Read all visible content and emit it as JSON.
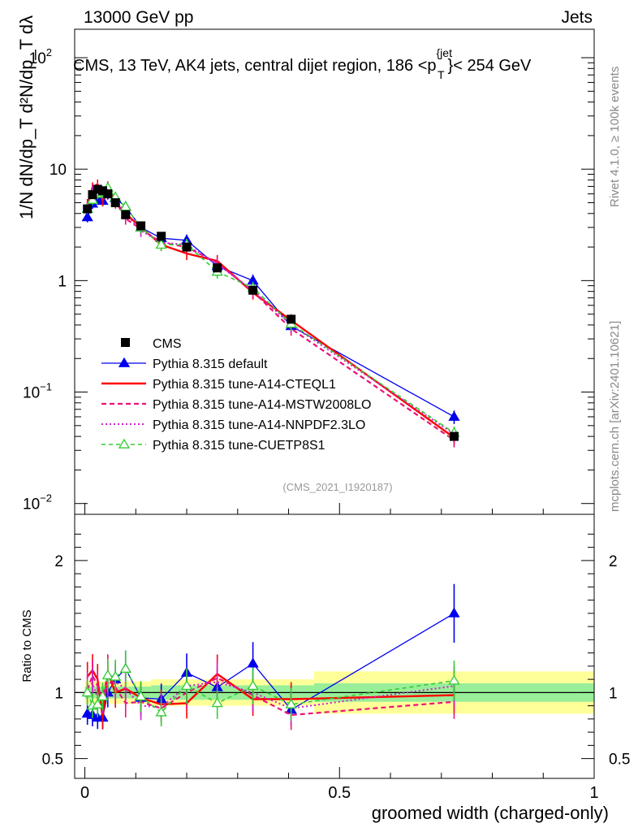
{
  "header": {
    "left": "13000 GeV pp",
    "right": "Jets",
    "title": "CMS, 13 TeV, AK4 jets, central dijet region, 186 <p",
    "title_sup": "{jet",
    "title_sub": "T",
    "title_end": "}< 254 GeV"
  },
  "side": {
    "rivet": "Rivet 4.1.0, ≥ 100k events",
    "mcplots": "mcplots.cern.ch [arXiv:2401.10621]"
  },
  "analysis_id": "(CMS_2021_I1920187)",
  "ylabel_top": "1/N dN/dp_T d²N/dp_T dλ",
  "ratio_ylabel": "Ratio to CMS",
  "xlabel": "groomed width (charged-only)",
  "colors": {
    "cms": "#000000",
    "default": "#0000ee",
    "a14_cteq": "#ff0000",
    "a14_mstw": "#ee1177",
    "a14_nnpdf": "#cc22cc",
    "cuetp8s1": "#33cc33",
    "band_inner": "#99ee99",
    "band_outer": "#ffff99"
  },
  "chart_data": {
    "type": "line",
    "title": "CMS, 13 TeV, AK4 jets, central dijet region, 186 < pT jet < 254 GeV",
    "xlabel": "groomed width (charged-only)",
    "ylabel": "1/N dN/dpT d2N/dpT dlambda",
    "xlim": [
      -0.02,
      1.0
    ],
    "ylim": [
      0.008,
      180
    ],
    "yscale": "log",
    "x_ticks": [
      "0",
      "0.5",
      "1"
    ],
    "y_ticks": [
      "10^-2",
      "10^-1",
      "1",
      "10",
      "10^2"
    ],
    "legend": [
      "CMS",
      "Pythia 8.315 default",
      "Pythia 8.315 tune-A14-CTEQL1",
      "Pythia 8.315 tune-A14-MSTW2008LO",
      "Pythia 8.315 tune-A14-NNPDF2.3LO",
      "Pythia 8.315 tune-CUETP8S1"
    ],
    "x": [
      0.005,
      0.015,
      0.025,
      0.035,
      0.045,
      0.06,
      0.08,
      0.11,
      0.15,
      0.2,
      0.26,
      0.33,
      0.405,
      0.725
    ],
    "data": {
      "name": "CMS",
      "values": [
        4.4,
        5.9,
        6.6,
        6.4,
        6.0,
        5.0,
        3.9,
        3.1,
        2.5,
        2.0,
        1.3,
        0.82,
        0.45,
        0.04
      ]
    },
    "series": [
      {
        "name": "Pythia 8.315 default",
        "values": [
          3.7,
          4.9,
          5.4,
          5.2,
          6.0,
          5.5,
          4.6,
          3.0,
          2.4,
          2.3,
          1.35,
          1.0,
          0.39,
          0.06
        ]
      },
      {
        "name": "Pythia 8.315 tune-A14-CTEQL1",
        "values": [
          4.9,
          6.9,
          7.3,
          5.2,
          6.9,
          5.0,
          4.0,
          3.0,
          2.1,
          1.75,
          1.5,
          0.78,
          0.44,
          0.039
        ]
      },
      {
        "name": "Pythia 8.315 tune-A14-MSTW2008LO",
        "values": [
          4.5,
          6.7,
          6.9,
          6.0,
          7.0,
          5.2,
          3.6,
          2.9,
          2.2,
          2.0,
          1.44,
          0.8,
          0.37,
          0.037
        ]
      },
      {
        "name": "Pythia 8.315 tune-A14-NNPDF2.3LO",
        "values": [
          4.6,
          6.3,
          6.3,
          6.1,
          6.4,
          5.4,
          4.0,
          2.8,
          2.2,
          2.1,
          1.4,
          0.82,
          0.4,
          0.042
        ]
      },
      {
        "name": "Pythia 8.315 tune-CUETP8S1",
        "values": [
          4.4,
          5.3,
          6.0,
          6.2,
          6.8,
          5.6,
          4.6,
          3.0,
          2.1,
          2.1,
          1.2,
          0.86,
          0.41,
          0.043
        ]
      }
    ],
    "ratio": {
      "ylabel": "Ratio to CMS",
      "ylim": [
        0.35,
        2.35
      ],
      "y_ticks": [
        "0.5",
        "1",
        "2"
      ],
      "series": [
        {
          "name": "Pythia 8.315 default",
          "values": [
            0.84,
            0.83,
            0.81,
            0.81,
            1.0,
            1.1,
            1.18,
            0.96,
            0.95,
            1.15,
            1.04,
            1.22,
            0.87,
            1.6
          ]
        },
        {
          "name": "Pythia 8.315 tune-A14-CTEQL1",
          "values": [
            1.12,
            1.17,
            1.1,
            0.81,
            1.15,
            1.0,
            1.03,
            0.96,
            0.91,
            0.92,
            1.14,
            0.95,
            0.95,
            0.98
          ]
        },
        {
          "name": "Pythia 8.315 tune-A14-MSTW2008LO",
          "values": [
            1.02,
            1.13,
            1.05,
            0.94,
            1.16,
            1.04,
            0.92,
            0.93,
            0.88,
            1.0,
            1.11,
            0.98,
            0.83,
            0.93
          ]
        },
        {
          "name": "Pythia 8.315 tune-A14-NNPDF2.3LO",
          "values": [
            1.05,
            1.07,
            0.96,
            0.95,
            1.07,
            1.08,
            1.03,
            0.9,
            0.89,
            1.05,
            1.08,
            1.0,
            0.88,
            1.05
          ]
        },
        {
          "name": "Pythia 8.315 tune-CUETP8S1",
          "values": [
            1.0,
            0.9,
            0.91,
            0.97,
            1.13,
            1.12,
            1.18,
            0.97,
            0.85,
            1.05,
            0.92,
            1.05,
            0.91,
            1.09
          ]
        }
      ],
      "band_bins": [
        [
          0.0,
          0.13,
          0.045,
          0.085
        ],
        [
          0.13,
          0.45,
          0.055,
          0.1
        ],
        [
          0.45,
          1.0,
          0.07,
          0.16
        ]
      ]
    }
  }
}
